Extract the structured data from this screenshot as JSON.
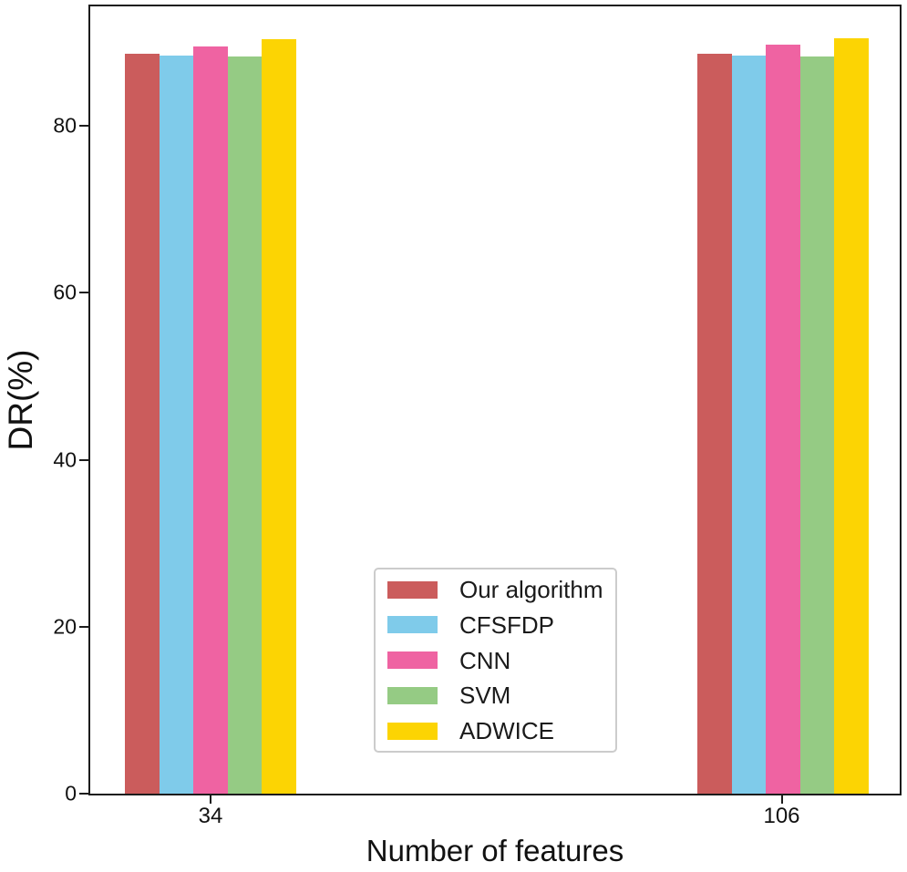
{
  "chart_data": {
    "type": "bar",
    "title": "",
    "xlabel": "Number of features",
    "ylabel": "DR(%)",
    "categories": [
      "34",
      "106"
    ],
    "series": [
      {
        "name": "Our algorithm",
        "color": "#CB5C5C",
        "values": [
          88.6,
          88.6
        ]
      },
      {
        "name": "CFSFDP",
        "color": "#7FCBEA",
        "values": [
          88.4,
          88.4
        ]
      },
      {
        "name": "CNN",
        "color": "#EF63A2",
        "values": [
          89.5,
          89.7
        ]
      },
      {
        "name": "SVM",
        "color": "#95CB84",
        "values": [
          88.3,
          88.3
        ]
      },
      {
        "name": "ADWICE",
        "color": "#FCD403",
        "values": [
          90.4,
          90.5
        ]
      }
    ],
    "yticks": [
      0,
      20,
      40,
      60,
      80
    ],
    "ylim": [
      0,
      94.3
    ],
    "grid": false,
    "legend_position": "inside plot, lower-center-left",
    "axis_color": "#1c1c1c",
    "background_color": "#ffffff"
  }
}
